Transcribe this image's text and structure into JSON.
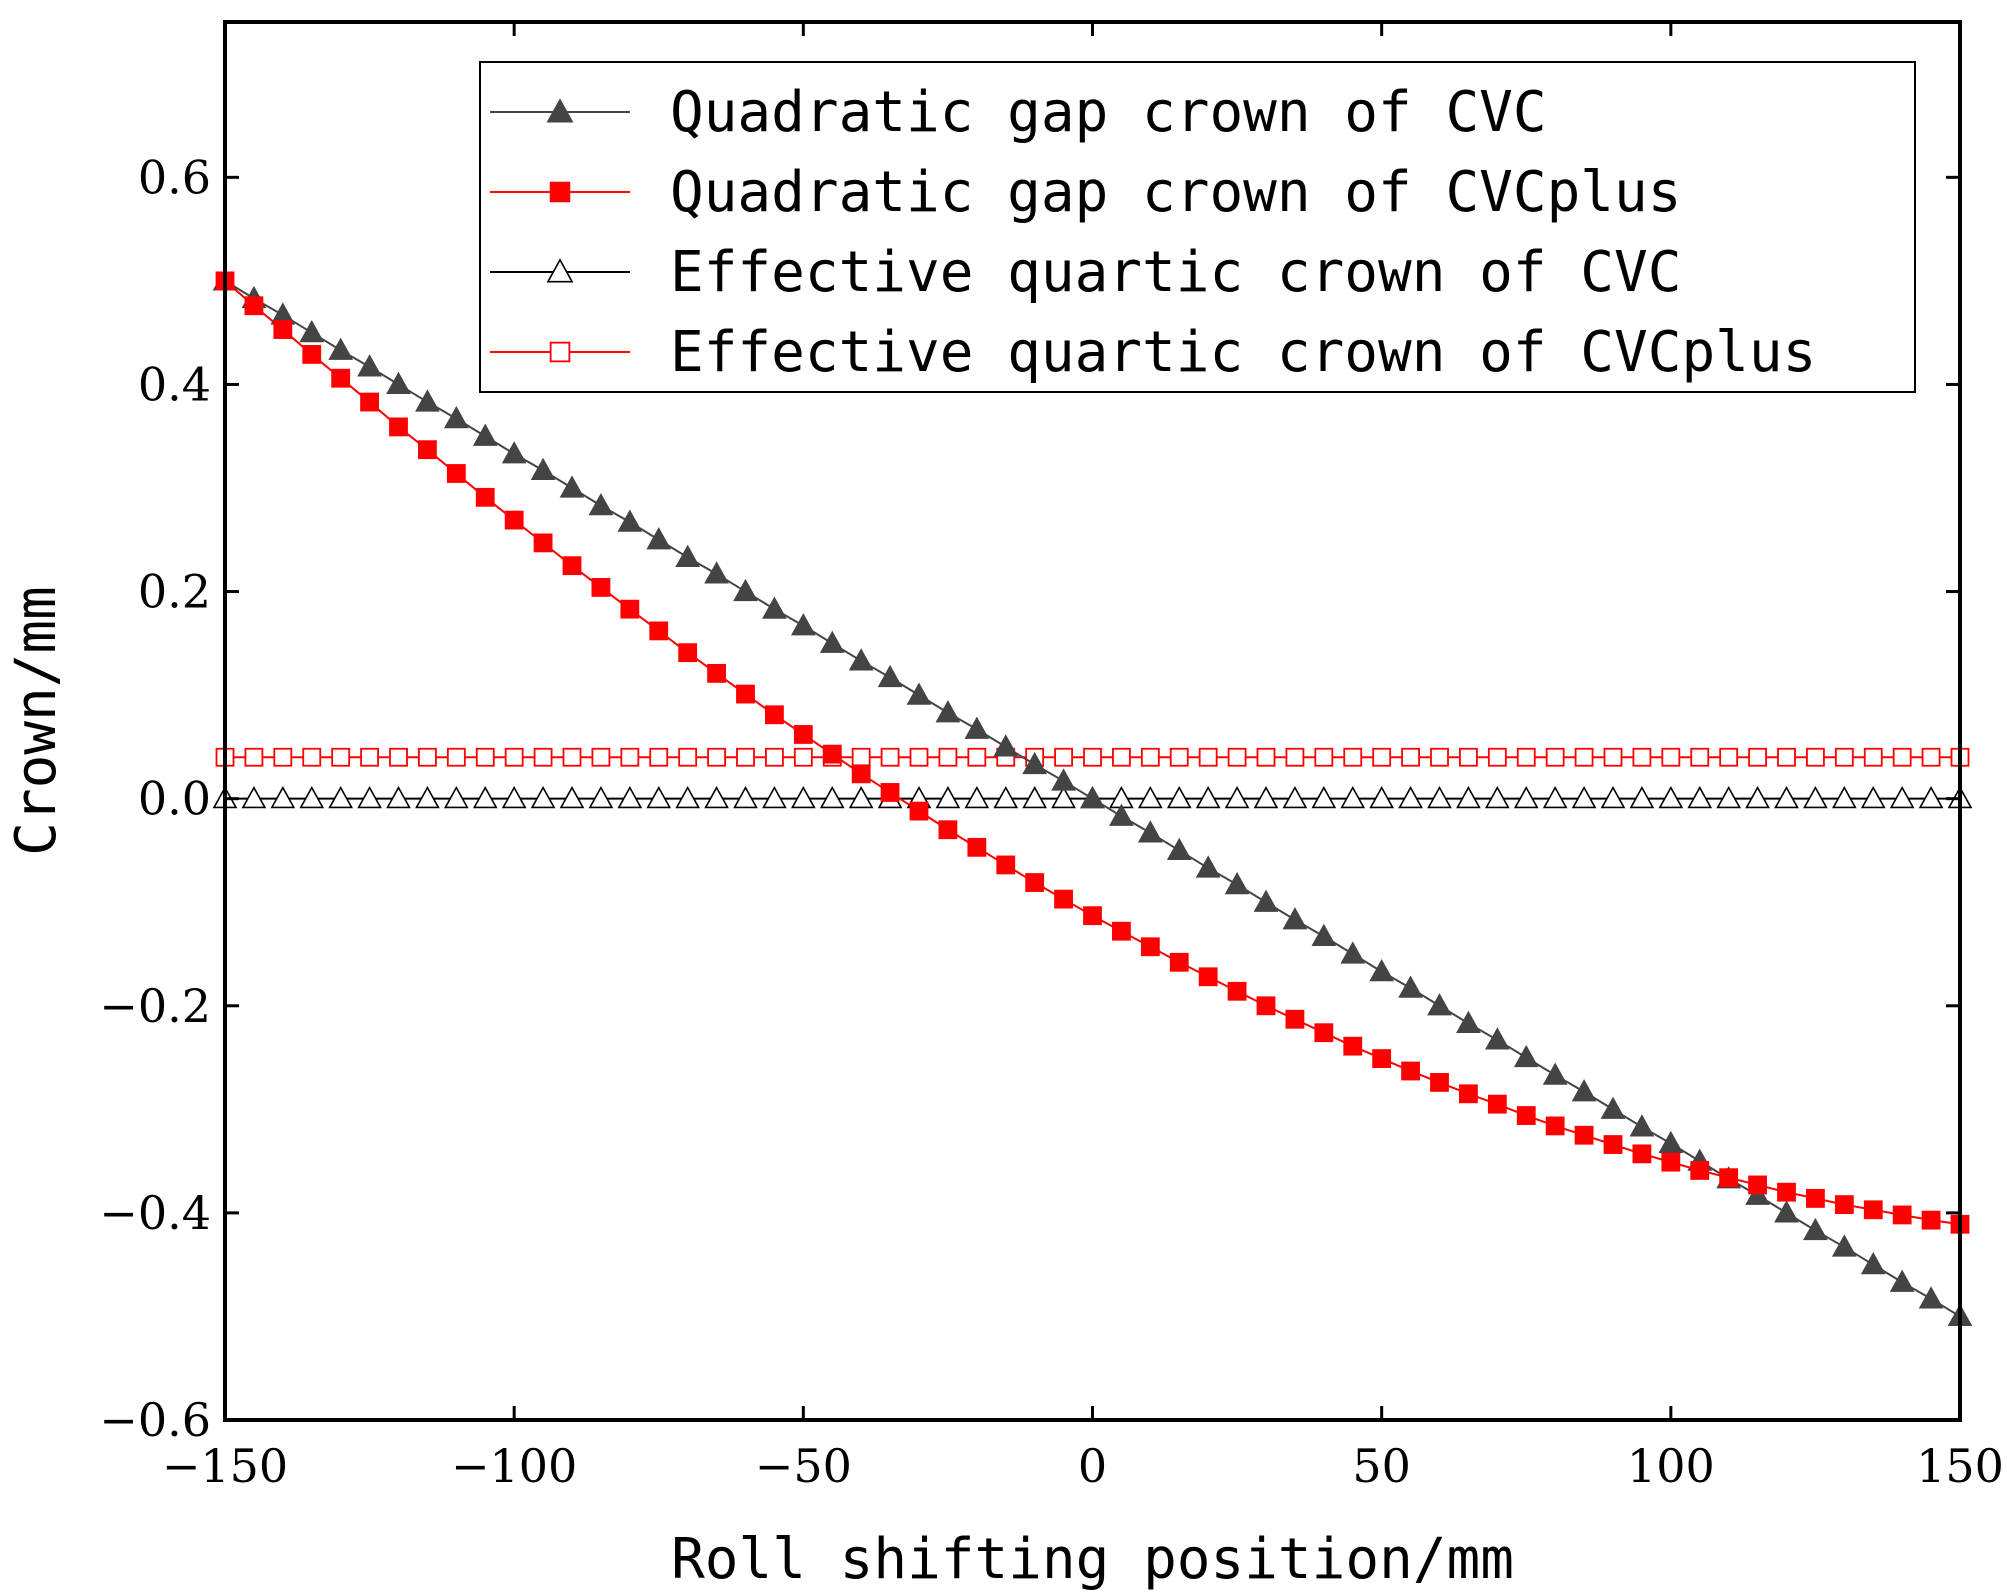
{
  "chart_data": {
    "type": "line",
    "title": "",
    "xlabel": "Roll shifting position/mm",
    "ylabel": "Crown/mm",
    "xlim": [
      -150,
      150
    ],
    "ylim": [
      -0.6,
      0.75
    ],
    "x_ticks": [
      -150,
      -100,
      -50,
      0,
      50,
      100,
      150
    ],
    "y_ticks": [
      -0.6,
      -0.4,
      -0.2,
      0.0,
      0.2,
      0.4,
      0.6
    ],
    "x_tick_labels": [
      "−150",
      "−100",
      "−50",
      "0",
      "50",
      "100",
      "150"
    ],
    "y_tick_labels": [
      "−0.6",
      "−0.4",
      "−0.2",
      "0.0",
      "0.2",
      "0.4",
      "0.6"
    ],
    "grid": false,
    "legend_position": "top-right",
    "x": [
      -150,
      -145,
      -140,
      -135,
      -130,
      -125,
      -120,
      -115,
      -110,
      -105,
      -100,
      -95,
      -90,
      -85,
      -80,
      -75,
      -70,
      -65,
      -60,
      -55,
      -50,
      -45,
      -40,
      -35,
      -30,
      -25,
      -20,
      -15,
      -10,
      -5,
      0,
      5,
      10,
      15,
      20,
      25,
      30,
      35,
      40,
      45,
      50,
      55,
      60,
      65,
      70,
      75,
      80,
      85,
      90,
      95,
      100,
      105,
      110,
      115,
      120,
      125,
      130,
      135,
      140,
      145,
      150
    ],
    "series": [
      {
        "name": "Quadratic gap crown of CVC",
        "color": "#444444",
        "marker": "triangle-filled",
        "values": [
          0.5,
          0.483,
          0.467,
          0.45,
          0.433,
          0.417,
          0.4,
          0.383,
          0.367,
          0.35,
          0.333,
          0.317,
          0.3,
          0.283,
          0.267,
          0.25,
          0.233,
          0.217,
          0.2,
          0.183,
          0.167,
          0.15,
          0.133,
          0.117,
          0.1,
          0.083,
          0.067,
          0.05,
          0.033,
          0.017,
          0.0,
          -0.017,
          -0.033,
          -0.05,
          -0.067,
          -0.083,
          -0.1,
          -0.117,
          -0.133,
          -0.15,
          -0.167,
          -0.183,
          -0.2,
          -0.217,
          -0.233,
          -0.25,
          -0.267,
          -0.283,
          -0.3,
          -0.317,
          -0.333,
          -0.35,
          -0.367,
          -0.383,
          -0.4,
          -0.417,
          -0.433,
          -0.45,
          -0.467,
          -0.483,
          -0.5
        ]
      },
      {
        "name": "Quadratic gap crown of CVCplus",
        "color": "#ff0000",
        "marker": "square-filled",
        "values": [
          0.5,
          0.476,
          0.453,
          0.429,
          0.406,
          0.383,
          0.359,
          0.337,
          0.314,
          0.291,
          0.269,
          0.247,
          0.225,
          0.204,
          0.183,
          0.162,
          0.141,
          0.121,
          0.101,
          0.081,
          0.062,
          0.043,
          0.024,
          0.006,
          -0.012,
          -0.03,
          -0.047,
          -0.064,
          -0.081,
          -0.097,
          -0.113,
          -0.128,
          -0.143,
          -0.158,
          -0.172,
          -0.186,
          -0.2,
          -0.213,
          -0.226,
          -0.239,
          -0.251,
          -0.263,
          -0.274,
          -0.285,
          -0.295,
          -0.306,
          -0.316,
          -0.325,
          -0.334,
          -0.343,
          -0.351,
          -0.359,
          -0.366,
          -0.373,
          -0.38,
          -0.386,
          -0.392,
          -0.397,
          -0.402,
          -0.407,
          -0.411
        ]
      },
      {
        "name": "Effective quartic crown of CVC",
        "color": "#000000",
        "marker": "triangle-open",
        "values": [
          0,
          0,
          0,
          0,
          0,
          0,
          0,
          0,
          0,
          0,
          0,
          0,
          0,
          0,
          0,
          0,
          0,
          0,
          0,
          0,
          0,
          0,
          0,
          0,
          0,
          0,
          0,
          0,
          0,
          0,
          0,
          0,
          0,
          0,
          0,
          0,
          0,
          0,
          0,
          0,
          0,
          0,
          0,
          0,
          0,
          0,
          0,
          0,
          0,
          0,
          0,
          0,
          0,
          0,
          0,
          0,
          0,
          0,
          0,
          0,
          0
        ]
      },
      {
        "name": "Effective quartic crown of CVCplus",
        "color": "#ff0000",
        "marker": "square-open",
        "values": [
          0.04,
          0.04,
          0.04,
          0.04,
          0.04,
          0.04,
          0.04,
          0.04,
          0.04,
          0.04,
          0.04,
          0.04,
          0.04,
          0.04,
          0.04,
          0.04,
          0.04,
          0.04,
          0.04,
          0.04,
          0.04,
          0.04,
          0.04,
          0.04,
          0.04,
          0.04,
          0.04,
          0.04,
          0.04,
          0.04,
          0.04,
          0.04,
          0.04,
          0.04,
          0.04,
          0.04,
          0.04,
          0.04,
          0.04,
          0.04,
          0.04,
          0.04,
          0.04,
          0.04,
          0.04,
          0.04,
          0.04,
          0.04,
          0.04,
          0.04,
          0.04,
          0.04,
          0.04,
          0.04,
          0.04,
          0.04,
          0.04,
          0.04,
          0.04,
          0.04,
          0.04
        ]
      }
    ]
  }
}
